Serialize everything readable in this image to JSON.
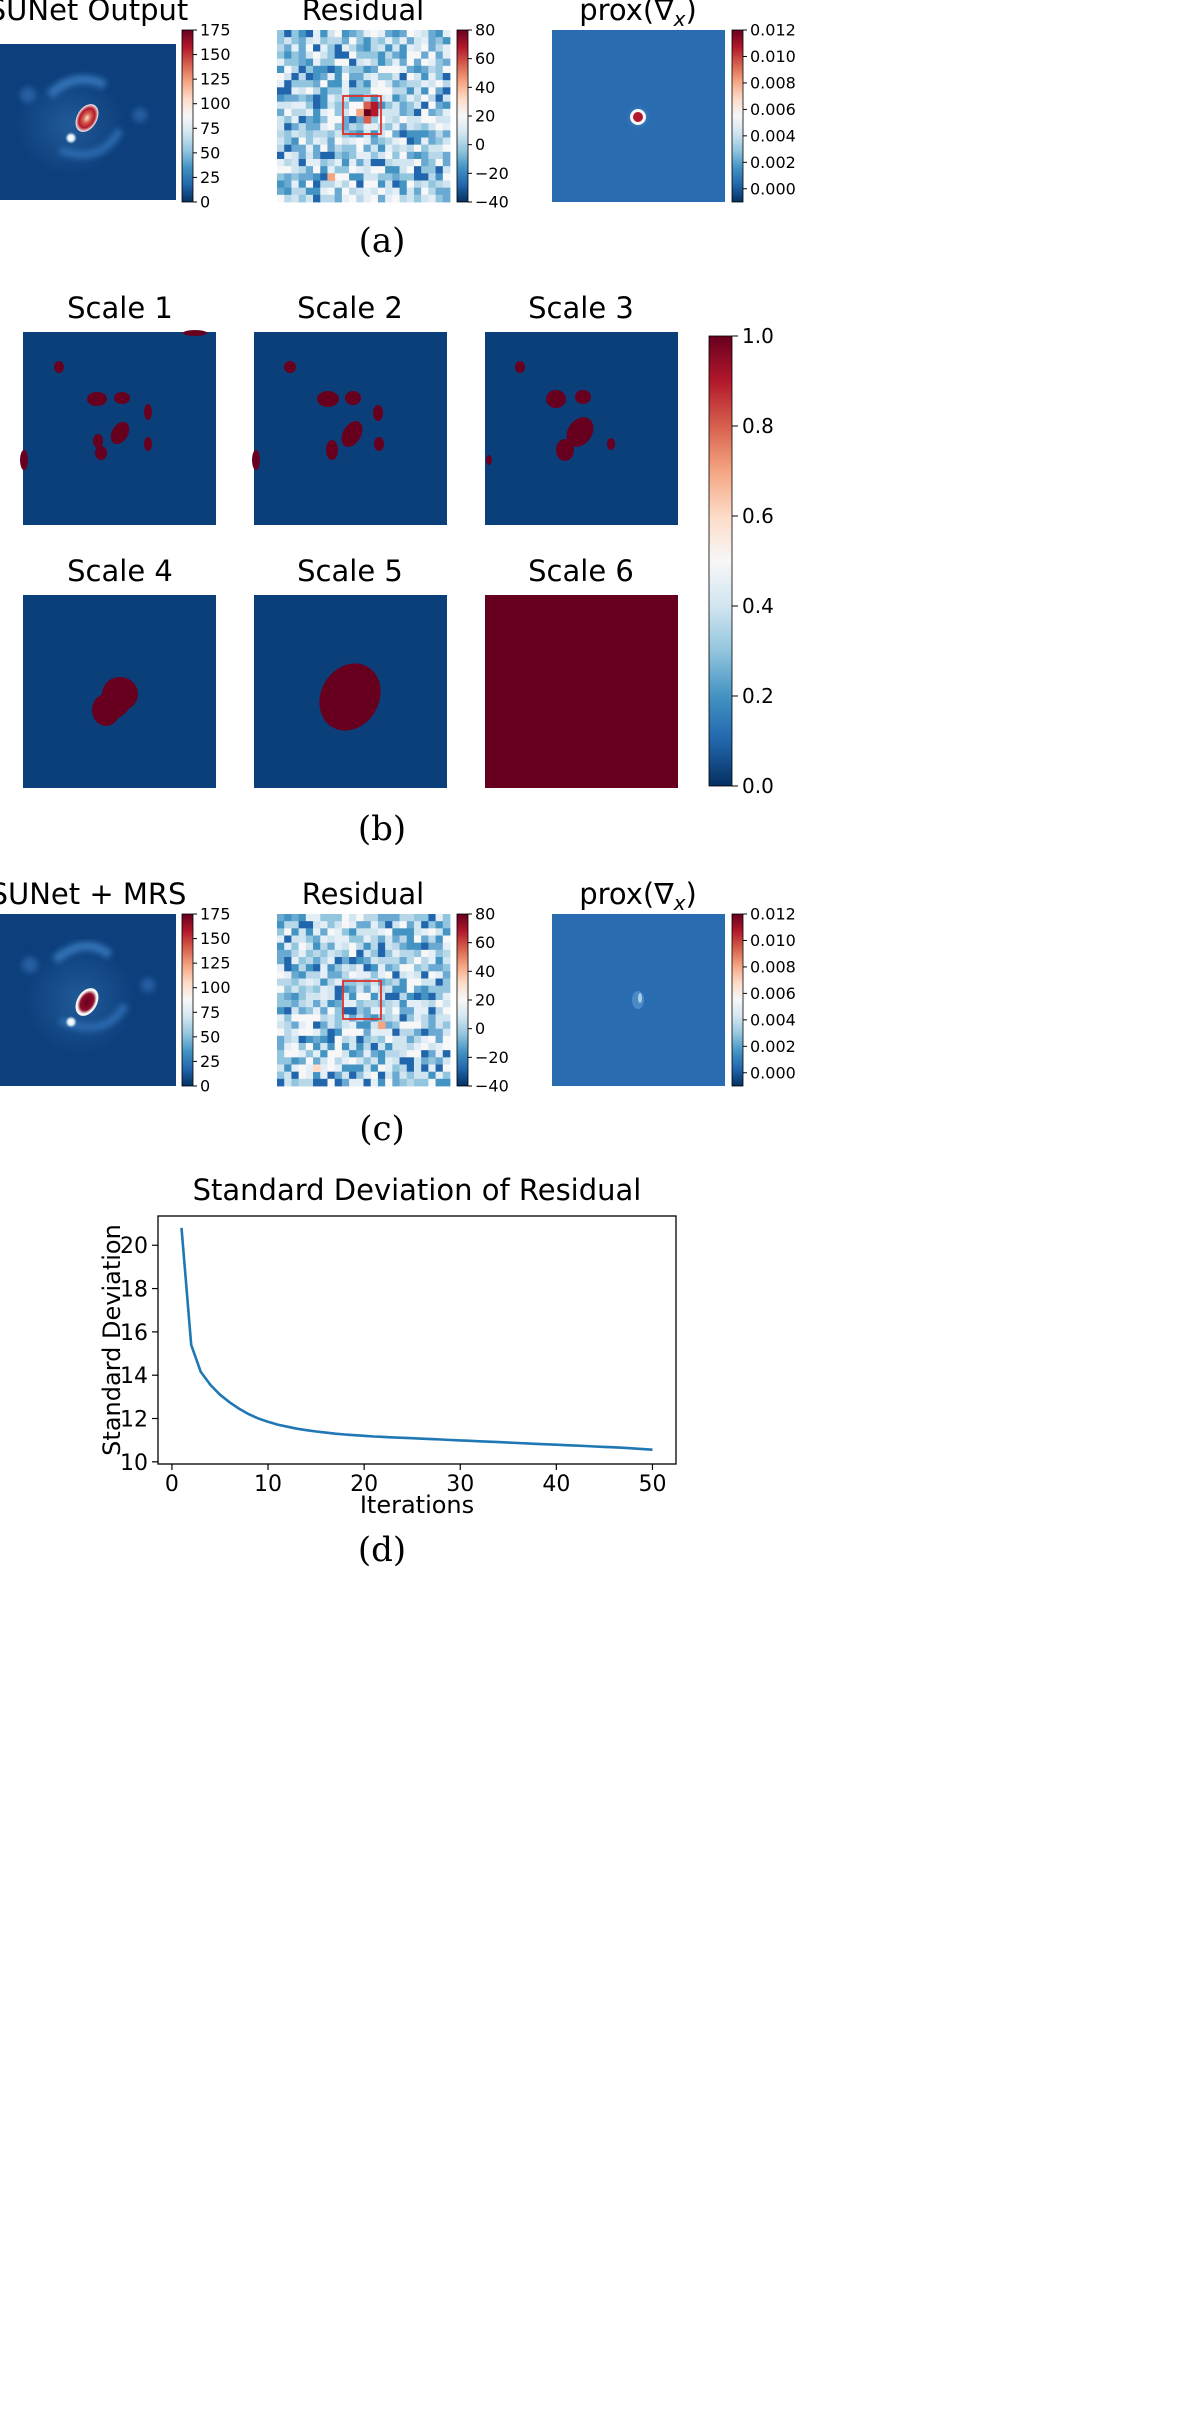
{
  "panels": {
    "a": {
      "label": "(a)",
      "images": [
        {
          "title": "SUNet Output",
          "colorbar_ticks": [
            "175",
            "150",
            "125",
            "100",
            "75",
            "50",
            "25",
            "0"
          ],
          "colorbar_range": [
            0,
            175
          ]
        },
        {
          "title": "Residual",
          "colorbar_ticks": [
            "80",
            "60",
            "40",
            "20",
            "0",
            "−20",
            "−40"
          ],
          "colorbar_range": [
            -40,
            80
          ]
        },
        {
          "title": "prox(∇",
          "title_sub": "x",
          "title_end": ")",
          "colorbar_ticks": [
            "0.012",
            "0.010",
            "0.008",
            "0.006",
            "0.004",
            "0.002",
            "0.000"
          ],
          "colorbar_range": [
            -0.001,
            0.012
          ]
        }
      ]
    },
    "b": {
      "label": "(b)",
      "scales": [
        "Scale 1",
        "Scale 2",
        "Scale 3",
        "Scale 4",
        "Scale 5",
        "Scale 6"
      ],
      "colorbar_ticks": [
        "1.0",
        "0.8",
        "0.6",
        "0.4",
        "0.2",
        "0.0"
      ],
      "colorbar_range": [
        0,
        1
      ]
    },
    "c": {
      "label": "(c)",
      "images": [
        {
          "title": "SUNet + MRS",
          "colorbar_ticks": [
            "175",
            "150",
            "125",
            "100",
            "75",
            "50",
            "25",
            "0"
          ],
          "colorbar_range": [
            0,
            175
          ]
        },
        {
          "title": "Residual",
          "colorbar_ticks": [
            "80",
            "60",
            "40",
            "20",
            "0",
            "−20",
            "−40"
          ],
          "colorbar_range": [
            -40,
            80
          ]
        },
        {
          "title": "prox(∇",
          "title_sub": "x",
          "title_end": ")",
          "colorbar_ticks": [
            "0.012",
            "0.010",
            "0.008",
            "0.006",
            "0.004",
            "0.002",
            "0.000"
          ],
          "colorbar_range": [
            -0.001,
            0.012
          ]
        }
      ]
    },
    "d": {
      "label": "(d)"
    }
  },
  "colors": {
    "cmap": [
      "#67001f",
      "#b2182b",
      "#d6604d",
      "#f4a582",
      "#fddbc7",
      "#f7f7f7",
      "#d1e5f0",
      "#92c5de",
      "#4393c3",
      "#2166ac",
      "#053061"
    ],
    "mask_high": "#67001f",
    "mask_low": "#0b3f7a",
    "line": "#1f77b4",
    "box": "#e0302a"
  },
  "chart_data": {
    "type": "line",
    "title": "Standard Deviation of Residual",
    "xlabel": "Iterations",
    "ylabel": "Standard Deviation",
    "xlim": [
      -1.45,
      52.45
    ],
    "ylim": [
      9.9,
      21.35
    ],
    "xticks": [
      0,
      10,
      20,
      30,
      40,
      50
    ],
    "yticks": [
      10,
      12,
      14,
      16,
      18,
      20
    ],
    "x": [
      1,
      2,
      3,
      4,
      5,
      6,
      7,
      8,
      9,
      10,
      11,
      12,
      13,
      14,
      15,
      16,
      17,
      18,
      19,
      20,
      21,
      22,
      23,
      24,
      25,
      26,
      27,
      28,
      29,
      30,
      31,
      32,
      33,
      34,
      35,
      36,
      37,
      38,
      39,
      40,
      41,
      42,
      43,
      44,
      45,
      46,
      47,
      48,
      49,
      50
    ],
    "y": [
      20.8,
      15.4,
      14.15,
      13.55,
      13.1,
      12.75,
      12.45,
      12.2,
      12.0,
      11.85,
      11.72,
      11.62,
      11.53,
      11.46,
      11.4,
      11.35,
      11.3,
      11.26,
      11.23,
      11.2,
      11.17,
      11.15,
      11.13,
      11.11,
      11.09,
      11.07,
      11.05,
      11.03,
      11.01,
      10.99,
      10.97,
      10.95,
      10.93,
      10.91,
      10.89,
      10.87,
      10.85,
      10.83,
      10.81,
      10.79,
      10.77,
      10.75,
      10.73,
      10.71,
      10.69,
      10.67,
      10.65,
      10.62,
      10.59,
      10.56
    ]
  }
}
